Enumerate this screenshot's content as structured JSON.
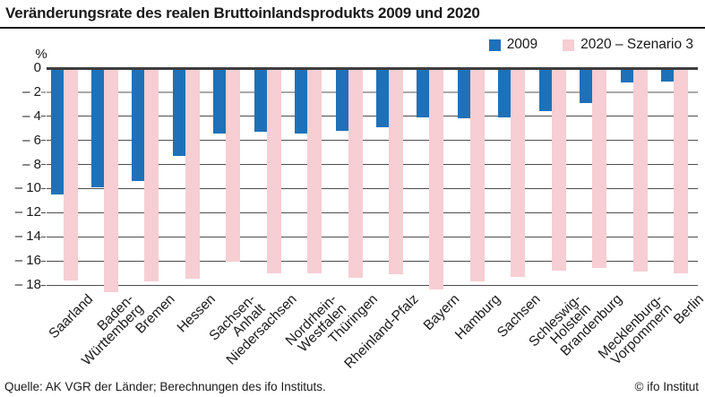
{
  "title": "Veränderungsrate des realen Bruttoinlandsprodukts 2009 und 2020",
  "footer": {
    "source": "Quelle: AK VGR der Länder; Berechnungen des ifo Instituts.",
    "copyright": "© ifo Institut"
  },
  "colors": {
    "series_2009": "#1e71b8",
    "series_2020": "#f6ced3",
    "text": "#1a1a1a",
    "grid": "#4d4d4d",
    "grid_light": "#a9a9a9",
    "zero_axis": "#3d3d3d"
  },
  "chart_data": {
    "type": "bar",
    "title": "Veränderungsrate des realen Bruttoinlandsprodukts 2009 und 2020",
    "unit": "%",
    "xlabel": "",
    "ylabel": "%",
    "grid": "horizontal",
    "legend_position": "top-right",
    "ylim": [
      -19,
      0
    ],
    "yticks": [
      0,
      -2,
      -4,
      -6,
      -8,
      -10,
      -12,
      -14,
      -16,
      -18
    ],
    "ytick_labels": [
      "0",
      "– 2",
      "– 4",
      "– 6",
      "– 8",
      "– 10",
      "– 12",
      "– 14",
      "– 16",
      "– 18"
    ],
    "categories": [
      "Saarland",
      "Baden-Württemberg",
      "Bremen",
      "Hessen",
      "Sachsen-Anhalt",
      "Niedersachsen",
      "Nordrhein-Westfalen",
      "Thüringen",
      "Rheinland-Pfalz",
      "Bayern",
      "Hamburg",
      "Sachsen",
      "Schleswig-Holstein",
      "Brandenburg",
      "Mecklenburg-Vorpommern",
      "Berlin"
    ],
    "category_lines": [
      [
        "Saarland"
      ],
      [
        "Baden-",
        "Württemberg"
      ],
      [
        "Bremen"
      ],
      [
        "Hessen"
      ],
      [
        "Sachsen-",
        "Anhalt"
      ],
      [
        "Niedersachsen"
      ],
      [
        "Nordrhein-",
        "Westfalen"
      ],
      [
        "Thüringen"
      ],
      [
        "Rheinland-Pfalz"
      ],
      [
        "Bayern"
      ],
      [
        "Hamburg"
      ],
      [
        "Sachsen"
      ],
      [
        "Schleswig-",
        "Holstein"
      ],
      [
        "Brandenburg"
      ],
      [
        "Mecklenburg-",
        "Vorpommern"
      ],
      [
        "Berlin"
      ]
    ],
    "series": [
      {
        "name": "2009",
        "color_key": "series_2009",
        "values": [
          -10.5,
          -9.9,
          -9.4,
          -7.3,
          -5.4,
          -5.3,
          -5.4,
          -5.2,
          -4.9,
          -4.1,
          -4.2,
          -4.1,
          -3.6,
          -2.9,
          -1.2,
          -1.1
        ]
      },
      {
        "name": "2020 – Szenario 3",
        "color_key": "series_2020",
        "values": [
          -17.6,
          -18.6,
          -17.7,
          -17.5,
          -16.1,
          -17.0,
          -17.0,
          -17.4,
          -17.1,
          -18.4,
          -17.7,
          -17.3,
          -16.8,
          -16.6,
          -16.9,
          -17.0
        ]
      }
    ]
  }
}
